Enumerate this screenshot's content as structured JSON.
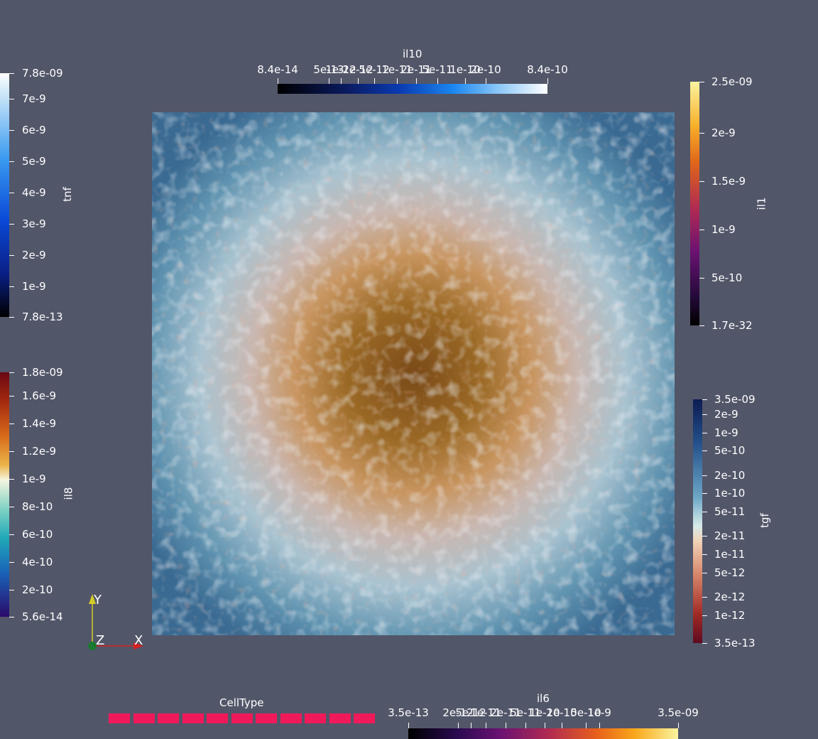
{
  "colorbars": {
    "tnf": {
      "title": "tnf",
      "labels": [
        "7.8e-09",
        "7e-9",
        "6e-9",
        "5e-9",
        "4e-9",
        "3e-9",
        "2e-9",
        "1e-9",
        "7.8e-13"
      ]
    },
    "il8": {
      "title": "il8",
      "labels": [
        "1.8e-09",
        "1.6e-9",
        "1.4e-9",
        "1.2e-9",
        "1e-9",
        "8e-10",
        "6e-10",
        "4e-10",
        "2e-10",
        "5.6e-14"
      ]
    },
    "il1": {
      "title": "il1",
      "labels": [
        "2.5e-09",
        "2e-9",
        "1.5e-9",
        "1e-9",
        "5e-10",
        "1.7e-32"
      ]
    },
    "tgf": {
      "title": "tgf",
      "labels": [
        "3.5e-09",
        "2e-9",
        "1e-9",
        "5e-10",
        "2e-10",
        "1e-10",
        "5e-11",
        "2e-11",
        "1e-11",
        "5e-12",
        "2e-12",
        "1e-12",
        "3.5e-13"
      ]
    },
    "il10": {
      "title": "il10",
      "labels": [
        "8.4e-14",
        "5e-13",
        "1e-12",
        "2e-12",
        "5e-12",
        "1e-11",
        "2e-11",
        "5e-11",
        "1e-10",
        "2e-10",
        "8.4e-10"
      ]
    },
    "il6": {
      "title": "il6",
      "labels": [
        "3.5e-13",
        "2e-12",
        "5e-12",
        "1e-11",
        "2e-11",
        "5e-11",
        "1e-10",
        "2e-10",
        "5e-10",
        "1e-9",
        "3.5e-09"
      ]
    }
  },
  "celltype": {
    "title": "CellType",
    "swatch_color": "#f01a5a",
    "swatch_count": 11
  },
  "axes": {
    "y": "Y",
    "z": "Z",
    "x": "X"
  },
  "colors": {
    "background": "#525669",
    "accent_x": "#d62020",
    "accent_y": "#d4cc2a",
    "accent_z": "#1a7a30"
  }
}
